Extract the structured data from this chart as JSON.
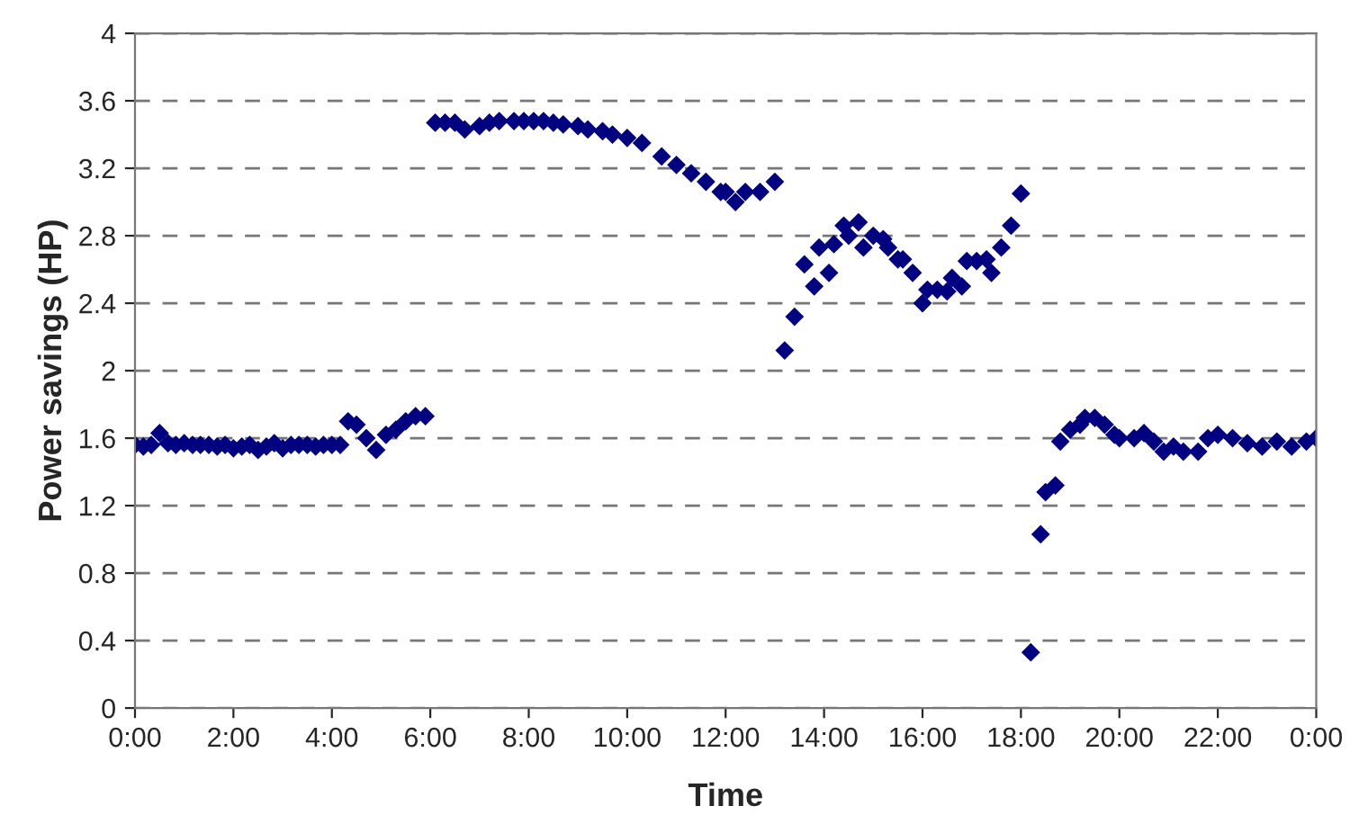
{
  "chart_data": {
    "type": "scatter",
    "xlabel": "Time",
    "ylabel": "Power savings (HP)",
    "x": [
      0,
      0.17,
      0.33,
      0.5,
      0.67,
      0.83,
      1,
      1.17,
      1.33,
      1.5,
      1.67,
      1.83,
      2,
      2.17,
      2.33,
      2.5,
      2.67,
      2.83,
      3,
      3.17,
      3.33,
      3.5,
      3.67,
      3.83,
      4,
      4.17,
      4.33,
      4.5,
      4.7,
      4.9,
      5.1,
      5.3,
      5.5,
      5.7,
      5.9,
      6.1,
      6.3,
      6.5,
      6.7,
      7.0,
      7.2,
      7.4,
      7.7,
      7.9,
      8.1,
      8.3,
      8.5,
      8.7,
      9.0,
      9.2,
      9.5,
      9.7,
      10.0,
      10.3,
      10.7,
      11.0,
      11.3,
      11.6,
      11.9,
      12.0,
      12.2,
      12.4,
      12.7,
      13.0,
      13.2,
      13.4,
      13.6,
      13.8,
      13.9,
      14.1,
      14.2,
      14.4,
      14.5,
      14.7,
      14.8,
      15.0,
      15.2,
      15.3,
      15.5,
      15.6,
      15.8,
      16.0,
      16.1,
      16.3,
      16.5,
      16.6,
      16.8,
      16.9,
      17.1,
      17.3,
      17.4,
      17.6,
      17.8,
      18.0,
      18.2,
      18.4,
      18.5,
      18.7,
      18.8,
      19.0,
      19.2,
      19.3,
      19.5,
      19.7,
      19.9,
      20.0,
      20.3,
      20.5,
      20.7,
      20.9,
      21.1,
      21.3,
      21.6,
      21.8,
      22.0,
      22.3,
      22.6,
      22.9,
      23.2,
      23.5,
      23.8,
      24.0
    ],
    "series": [
      {
        "color": "#000080",
        "values": [
          1.56,
          1.55,
          1.56,
          1.63,
          1.57,
          1.56,
          1.57,
          1.56,
          1.56,
          1.56,
          1.55,
          1.56,
          1.54,
          1.55,
          1.56,
          1.53,
          1.55,
          1.57,
          1.54,
          1.56,
          1.56,
          1.56,
          1.55,
          1.56,
          1.56,
          1.56,
          1.7,
          1.68,
          1.6,
          1.53,
          1.62,
          1.65,
          1.7,
          1.73,
          1.73,
          3.47,
          3.47,
          3.47,
          3.43,
          3.45,
          3.47,
          3.48,
          3.48,
          3.48,
          3.48,
          3.48,
          3.47,
          3.46,
          3.45,
          3.43,
          3.42,
          3.4,
          3.38,
          3.35,
          3.27,
          3.22,
          3.17,
          3.12,
          3.06,
          3.06,
          3.0,
          3.06,
          3.06,
          3.12,
          2.12,
          2.32,
          2.63,
          2.5,
          2.73,
          2.58,
          2.75,
          2.86,
          2.8,
          2.88,
          2.73,
          2.8,
          2.78,
          2.73,
          2.66,
          2.66,
          2.58,
          2.4,
          2.48,
          2.48,
          2.47,
          2.55,
          2.5,
          2.65,
          2.65,
          2.66,
          2.58,
          2.73,
          2.86,
          3.05,
          0.33,
          1.03,
          1.28,
          1.32,
          1.58,
          1.65,
          1.68,
          1.72,
          1.72,
          1.68,
          1.62,
          1.6,
          1.6,
          1.63,
          1.58,
          1.52,
          1.55,
          1.52,
          1.52,
          1.6,
          1.62,
          1.6,
          1.57,
          1.55,
          1.58,
          1.55,
          1.58,
          1.6
        ]
      }
    ],
    "marker": "diamond",
    "xlim": [
      0,
      24
    ],
    "xticks": [
      {
        "value": 0,
        "label": "0:00"
      },
      {
        "value": 2,
        "label": "2:00"
      },
      {
        "value": 4,
        "label": "4:00"
      },
      {
        "value": 6,
        "label": "6:00"
      },
      {
        "value": 8,
        "label": "8:00"
      },
      {
        "value": 10,
        "label": "10:00"
      },
      {
        "value": 12,
        "label": "12:00"
      },
      {
        "value": 14,
        "label": "14:00"
      },
      {
        "value": 16,
        "label": "16:00"
      },
      {
        "value": 18,
        "label": "18:00"
      },
      {
        "value": 20,
        "label": "20:00"
      },
      {
        "value": 22,
        "label": "22:00"
      },
      {
        "value": 24,
        "label": "0:00"
      }
    ],
    "ylim": [
      0,
      4
    ],
    "yticks": [
      0,
      0.4,
      0.8,
      1.2,
      1.6,
      2,
      2.4,
      2.8,
      3.2,
      3.6,
      4
    ],
    "grid": "y"
  }
}
